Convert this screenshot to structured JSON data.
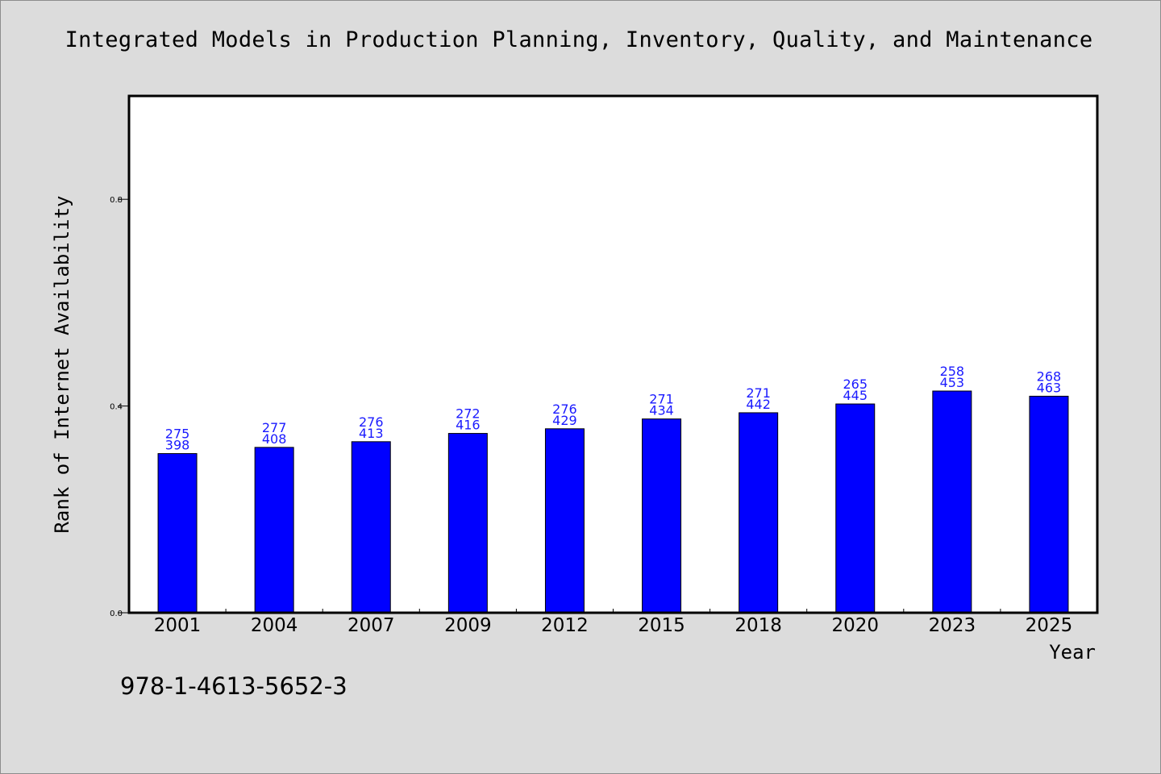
{
  "chart_data": {
    "type": "bar",
    "title": "Integrated Models in Production Planning, Inventory, Quality, and Maintenance",
    "xlabel": "Year",
    "ylabel": "Rank of Internet Availability",
    "categories": [
      "2001",
      "2004",
      "2007",
      "2009",
      "2012",
      "2015",
      "2018",
      "2020",
      "2023",
      "2025"
    ],
    "series": [
      {
        "values": [
          0.308,
          0.32,
          0.331,
          0.347,
          0.356,
          0.375,
          0.387,
          0.404,
          0.429,
          0.419
        ],
        "color": "#0000ff",
        "labels_top": [
          "275",
          "277",
          "276",
          "272",
          "276",
          "271",
          "271",
          "265",
          "258",
          "268"
        ],
        "labels_bottom": [
          "398",
          "408",
          "413",
          "416",
          "429",
          "434",
          "442",
          "445",
          "453",
          "463"
        ]
      }
    ],
    "ylim": [
      0,
      1.0
    ],
    "yticks": [
      0.0,
      0.4,
      0.8
    ],
    "ytick_labels": [
      "0.0",
      "0.4",
      "0.8"
    ],
    "grid": false,
    "legend": "none"
  },
  "footer": {
    "isbn": "978-1-4613-5652-3"
  },
  "colors": {
    "background": "#dcdcdc",
    "plot_background": "#ffffff",
    "bar_fill": "#0000ff",
    "data_label": "#1a1aff"
  }
}
